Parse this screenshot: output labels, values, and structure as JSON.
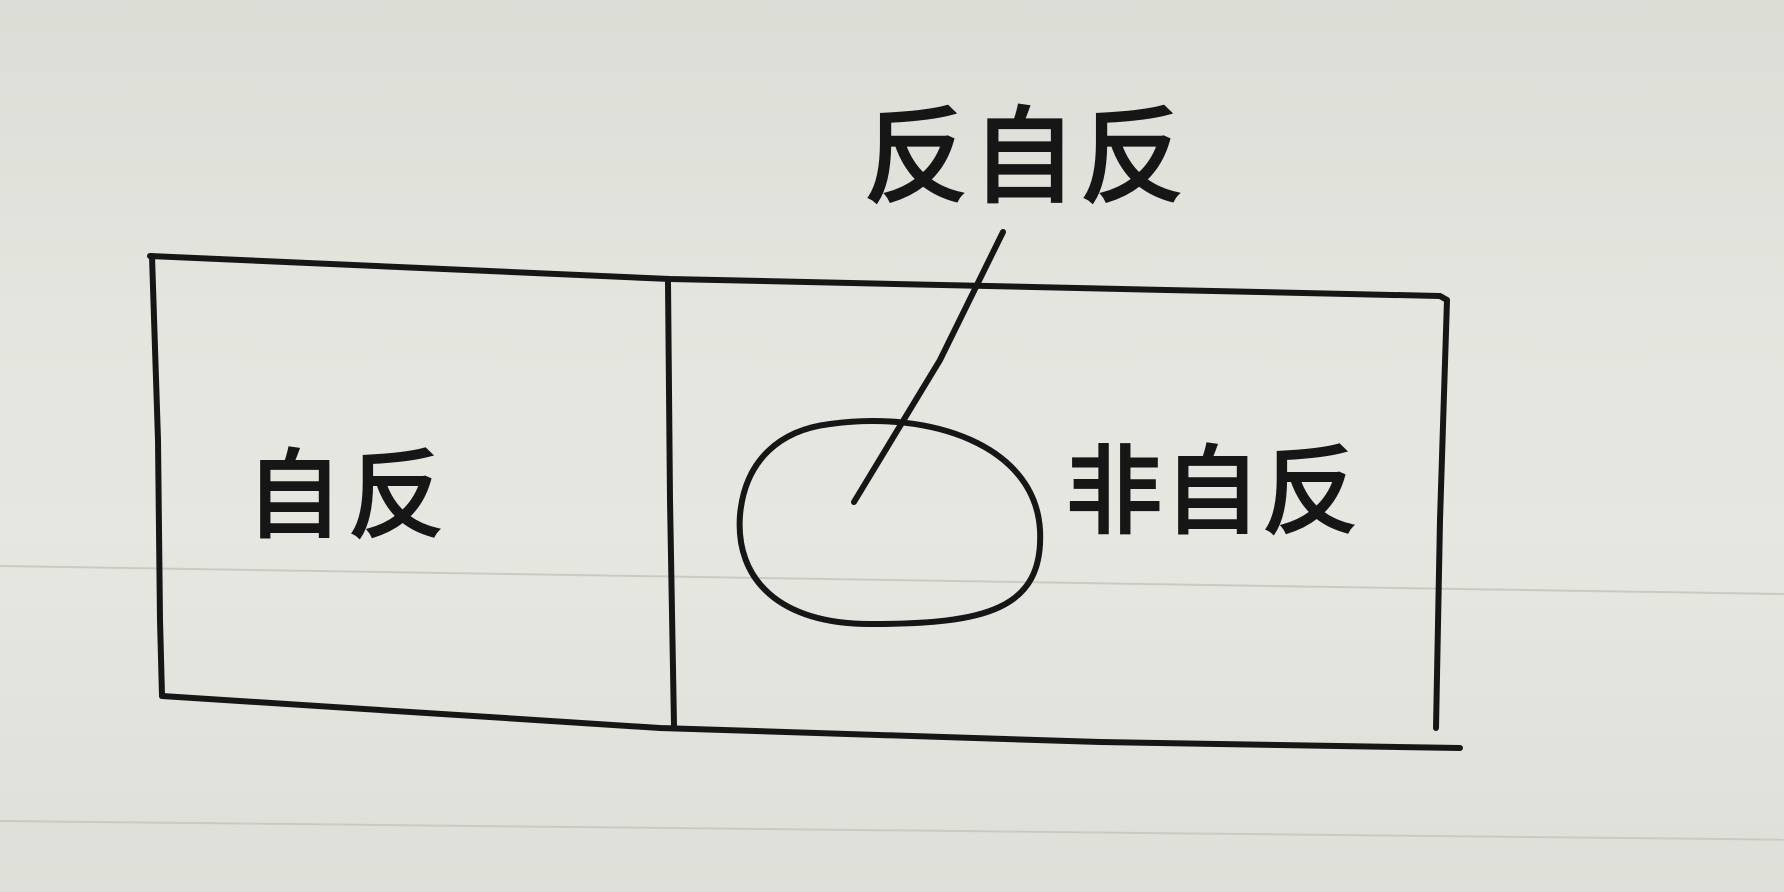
{
  "diagram": {
    "left_region_label": "自反",
    "right_region_label": "非自反",
    "callout_label": "反自反",
    "ink_color": "#161616",
    "paper_color": "#e4e5de",
    "rule_line_color": "#c9cac2"
  }
}
